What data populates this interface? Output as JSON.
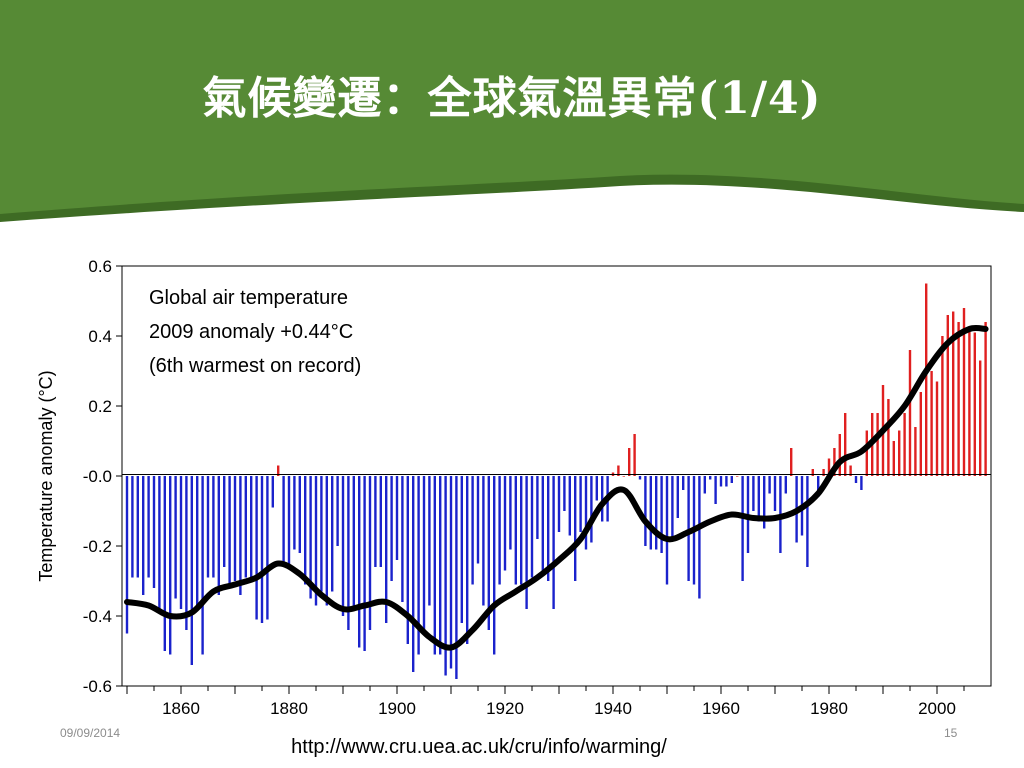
{
  "slide": {
    "title": "氣候變遷：全球氣溫異常(1/4)",
    "date": "09/09/2014",
    "page_number": "15",
    "source_url": "http://www.cru.uea.ac.uk/cru/info/warming/"
  },
  "colors": {
    "header_green": "#568a35",
    "header_green_dark": "#3e6b24",
    "positive_bar": "#e02020",
    "negative_bar": "#1a22cc",
    "smooth_line": "#000000"
  },
  "chart_data": {
    "type": "bar",
    "title_lines": [
      "Global air temperature",
      "2009 anomaly +0.44°C",
      "(6th warmest on record)"
    ],
    "xlabel": "",
    "ylabel": "Temperature anomaly (°C)",
    "xlim": [
      1850,
      2009
    ],
    "ylim": [
      -0.6,
      0.6
    ],
    "x_ticks": [
      "1860",
      "1880",
      "1900",
      "1920",
      "1940",
      "1960",
      "1980",
      "2000"
    ],
    "y_ticks": [
      "0.6",
      "0.4",
      "0.2",
      "-0.0",
      "-0.2",
      "-0.4",
      "-0.6"
    ],
    "grid": false,
    "years": [
      1850,
      1851,
      1852,
      1853,
      1854,
      1855,
      1856,
      1857,
      1858,
      1859,
      1860,
      1861,
      1862,
      1863,
      1864,
      1865,
      1866,
      1867,
      1868,
      1869,
      1870,
      1871,
      1872,
      1873,
      1874,
      1875,
      1876,
      1877,
      1878,
      1879,
      1880,
      1881,
      1882,
      1883,
      1884,
      1885,
      1886,
      1887,
      1888,
      1889,
      1890,
      1891,
      1892,
      1893,
      1894,
      1895,
      1896,
      1897,
      1898,
      1899,
      1900,
      1901,
      1902,
      1903,
      1904,
      1905,
      1906,
      1907,
      1908,
      1909,
      1910,
      1911,
      1912,
      1913,
      1914,
      1915,
      1916,
      1917,
      1918,
      1919,
      1920,
      1921,
      1922,
      1923,
      1924,
      1925,
      1926,
      1927,
      1928,
      1929,
      1930,
      1931,
      1932,
      1933,
      1934,
      1935,
      1936,
      1937,
      1938,
      1939,
      1940,
      1941,
      1942,
      1943,
      1944,
      1945,
      1946,
      1947,
      1948,
      1949,
      1950,
      1951,
      1952,
      1953,
      1954,
      1955,
      1956,
      1957,
      1958,
      1959,
      1960,
      1961,
      1962,
      1963,
      1964,
      1965,
      1966,
      1967,
      1968,
      1969,
      1970,
      1971,
      1972,
      1973,
      1974,
      1975,
      1976,
      1977,
      1978,
      1979,
      1980,
      1981,
      1982,
      1983,
      1984,
      1985,
      1986,
      1987,
      1988,
      1989,
      1990,
      1991,
      1992,
      1993,
      1994,
      1995,
      1996,
      1997,
      1998,
      1999,
      2000,
      2001,
      2002,
      2003,
      2004,
      2005,
      2006,
      2007,
      2008,
      2009
    ],
    "values": [
      -0.45,
      -0.29,
      -0.29,
      -0.34,
      -0.29,
      -0.32,
      -0.39,
      -0.5,
      -0.51,
      -0.35,
      -0.38,
      -0.44,
      -0.54,
      -0.37,
      -0.51,
      -0.29,
      -0.29,
      -0.34,
      -0.26,
      -0.31,
      -0.3,
      -0.34,
      -0.29,
      -0.3,
      -0.41,
      -0.42,
      -0.41,
      -0.09,
      0.03,
      -0.26,
      -0.26,
      -0.21,
      -0.22,
      -0.31,
      -0.35,
      -0.37,
      -0.33,
      -0.37,
      -0.33,
      -0.2,
      -0.4,
      -0.44,
      -0.38,
      -0.49,
      -0.5,
      -0.44,
      -0.26,
      -0.26,
      -0.42,
      -0.3,
      -0.24,
      -0.36,
      -0.48,
      -0.56,
      -0.51,
      -0.45,
      -0.37,
      -0.51,
      -0.51,
      -0.57,
      -0.55,
      -0.58,
      -0.42,
      -0.48,
      -0.31,
      -0.25,
      -0.37,
      -0.44,
      -0.51,
      -0.31,
      -0.27,
      -0.21,
      -0.31,
      -0.31,
      -0.38,
      -0.29,
      -0.18,
      -0.28,
      -0.3,
      -0.38,
      -0.16,
      -0.1,
      -0.17,
      -0.3,
      -0.16,
      -0.21,
      -0.19,
      -0.07,
      -0.13,
      -0.13,
      0.01,
      0.03,
      0.0,
      0.08,
      0.12,
      -0.01,
      -0.2,
      -0.21,
      -0.21,
      -0.22,
      -0.31,
      -0.18,
      -0.12,
      -0.04,
      -0.3,
      -0.31,
      -0.35,
      -0.05,
      -0.01,
      -0.08,
      -0.03,
      -0.03,
      -0.02,
      -0.0,
      -0.3,
      -0.22,
      -0.1,
      -0.13,
      -0.15,
      -0.05,
      -0.1,
      -0.22,
      -0.05,
      0.08,
      -0.19,
      -0.17,
      -0.26,
      0.02,
      -0.06,
      0.02,
      0.05,
      0.08,
      0.12,
      0.18,
      0.03,
      -0.02,
      -0.04,
      0.13,
      0.18,
      0.18,
      0.26,
      0.22,
      0.1,
      0.13,
      0.18,
      0.36,
      0.14,
      0.24,
      0.55,
      0.3,
      0.27,
      0.4,
      0.46,
      0.47,
      0.44,
      0.48,
      0.42,
      0.41,
      0.33,
      0.44
    ],
    "smoothed": [
      [
        1850,
        -0.36
      ],
      [
        1854,
        -0.37
      ],
      [
        1858,
        -0.4
      ],
      [
        1862,
        -0.39
      ],
      [
        1866,
        -0.33
      ],
      [
        1870,
        -0.31
      ],
      [
        1874,
        -0.29
      ],
      [
        1878,
        -0.25
      ],
      [
        1882,
        -0.28
      ],
      [
        1886,
        -0.34
      ],
      [
        1890,
        -0.38
      ],
      [
        1894,
        -0.37
      ],
      [
        1898,
        -0.36
      ],
      [
        1902,
        -0.4
      ],
      [
        1906,
        -0.46
      ],
      [
        1910,
        -0.49
      ],
      [
        1914,
        -0.44
      ],
      [
        1918,
        -0.37
      ],
      [
        1922,
        -0.33
      ],
      [
        1926,
        -0.29
      ],
      [
        1930,
        -0.24
      ],
      [
        1934,
        -0.18
      ],
      [
        1938,
        -0.08
      ],
      [
        1942,
        -0.04
      ],
      [
        1946,
        -0.13
      ],
      [
        1950,
        -0.18
      ],
      [
        1954,
        -0.16
      ],
      [
        1958,
        -0.13
      ],
      [
        1962,
        -0.11
      ],
      [
        1966,
        -0.12
      ],
      [
        1970,
        -0.12
      ],
      [
        1974,
        -0.1
      ],
      [
        1978,
        -0.05
      ],
      [
        1982,
        0.04
      ],
      [
        1986,
        0.07
      ],
      [
        1990,
        0.13
      ],
      [
        1994,
        0.2
      ],
      [
        1998,
        0.3
      ],
      [
        2002,
        0.38
      ],
      [
        2006,
        0.42
      ],
      [
        2009,
        0.42
      ]
    ]
  }
}
